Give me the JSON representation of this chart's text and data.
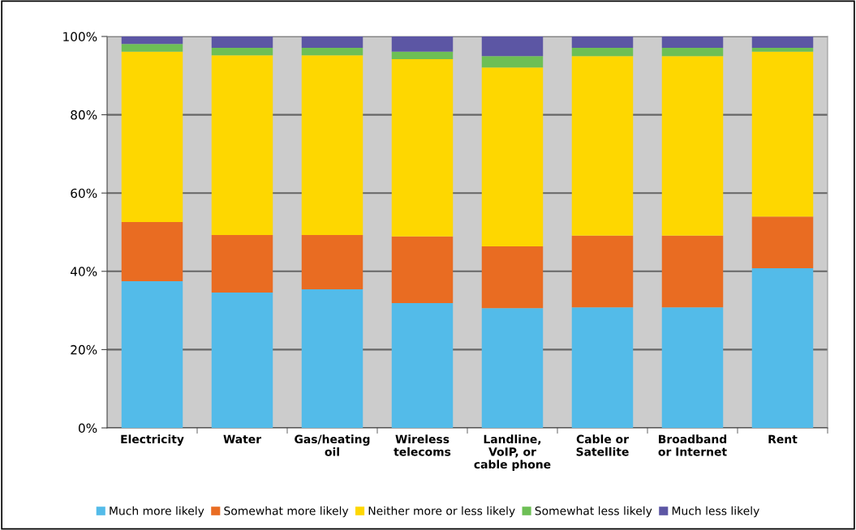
{
  "chart_data": {
    "type": "bar",
    "stacked": true,
    "categories": [
      "Electricity",
      "Water",
      "Gas/heating\noil",
      "Wireless\ntelecoms",
      "Landline,\nVoIP, or\ncable phone",
      "Cable or\nSatellite",
      "Broadband\nor Internet",
      "Rent"
    ],
    "series": [
      {
        "name": "Much more likely",
        "color": "#53bbe9",
        "values": [
          37.5,
          34.6,
          35.4,
          31.9,
          30.6,
          30.8,
          30.8,
          40.8
        ]
      },
      {
        "name": "Somewhat more likely",
        "color": "#e96c22",
        "values": [
          15.1,
          14.7,
          13.9,
          17.0,
          15.8,
          18.3,
          18.3,
          13.2
        ]
      },
      {
        "name": "Neither more or less likely",
        "color": "#fed700",
        "values": [
          43.5,
          45.9,
          45.9,
          45.3,
          45.7,
          45.9,
          45.9,
          42.1
        ]
      },
      {
        "name": "Somewhat less likely",
        "color": "#6dbf55",
        "values": [
          2.0,
          1.9,
          1.9,
          1.9,
          2.9,
          2.1,
          2.1,
          1.0
        ]
      },
      {
        "name": "Much less likely",
        "color": "#5c56a4",
        "values": [
          1.9,
          2.9,
          2.9,
          3.9,
          5.0,
          2.9,
          2.9,
          2.9
        ]
      }
    ],
    "ylim": [
      0,
      100
    ],
    "yticks": [
      {
        "value": 0,
        "label": "0%"
      },
      {
        "value": 20,
        "label": "20%"
      },
      {
        "value": 40,
        "label": "40%"
      },
      {
        "value": 60,
        "label": "60%"
      },
      {
        "value": 80,
        "label": "80%"
      },
      {
        "value": 100,
        "label": "100%"
      }
    ],
    "grid": "y",
    "legend": "bottom"
  }
}
